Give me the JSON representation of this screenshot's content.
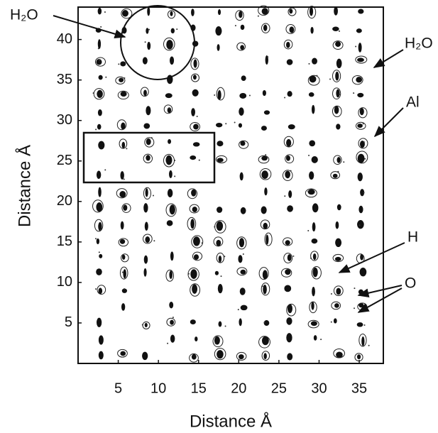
{
  "chart_data": {
    "type": "lattice-image",
    "xlabel": "Distance Å",
    "ylabel": "Distance Å",
    "xlim": [
      0,
      38
    ],
    "ylim": [
      0,
      44
    ],
    "xticks": [
      5,
      10,
      15,
      20,
      25,
      30,
      35
    ],
    "yticks": [
      5,
      10,
      15,
      20,
      25,
      30,
      35,
      40
    ],
    "annotations": [
      "H₂O",
      "H₂O",
      "Al",
      "H",
      "O"
    ]
  }
}
